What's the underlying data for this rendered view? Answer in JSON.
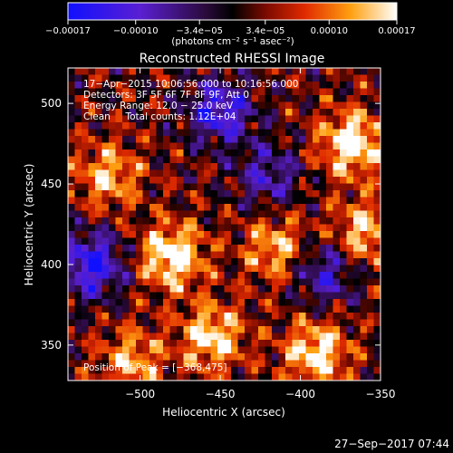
{
  "chart_data": {
    "type": "heatmap",
    "title": "Reconstructed RHESSI Image",
    "xlabel": "Heliocentric X (arcsec)",
    "ylabel": "Heliocentric Y (arcsec)",
    "xlim": [
      -545,
      -350
    ],
    "ylim": [
      328,
      522
    ],
    "x_ticks": [
      -500,
      -450,
      -400,
      -350
    ],
    "x_tick_labels": [
      "−500",
      "−450",
      "−400",
      "−350"
    ],
    "y_ticks": [
      350,
      400,
      450,
      500
    ],
    "y_tick_labels": [
      "350",
      "400",
      "450",
      "500"
    ],
    "colorbar": {
      "colormap": "blue-purple-black-red-yellow-white",
      "range": [
        -0.00017,
        0.00017
      ],
      "tick_values": [
        -0.00017,
        -0.0001,
        -3.4e-05,
        3.4e-05,
        0.0001,
        0.00017
      ],
      "tick_labels": [
        "−0.00017",
        "−0.00010",
        "−3.4e−05",
        "3.4e−05",
        "0.00010",
        "0.00017"
      ],
      "units_label": "(photons cm⁻² s⁻¹ asec⁻²)"
    },
    "annotations": [
      "17−Apr−2015 10:06:56.000 to 10:16:56.000",
      "Detectors: 3F 5F 6F 7F 8F 9F, Att 0",
      "Energy Range: 12.0 − 25.0 keV",
      "Clean     Total counts: 1.12E+04"
    ],
    "peak_label": "Position of Peak = [−368,475]",
    "peak_position": [
      -368,
      475
    ],
    "bright_sources": [
      {
        "x": -480,
        "y": 405,
        "level": 1.0
      },
      {
        "x": -368,
        "y": 475,
        "level": 1.0
      },
      {
        "x": -455,
        "y": 355,
        "level": 0.85
      },
      {
        "x": -390,
        "y": 345,
        "level": 0.9
      },
      {
        "x": -520,
        "y": 455,
        "level": 0.7
      },
      {
        "x": -415,
        "y": 410,
        "level": 0.7
      },
      {
        "x": -360,
        "y": 420,
        "level": 0.75
      },
      {
        "x": -505,
        "y": 340,
        "level": 0.65
      }
    ],
    "dim_regions": [
      {
        "x": -450,
        "y": 495,
        "level": -0.9
      },
      {
        "x": -530,
        "y": 400,
        "level": -1.0
      },
      {
        "x": -420,
        "y": 455,
        "level": -0.6
      },
      {
        "x": -385,
        "y": 395,
        "level": -0.7
      }
    ],
    "grid": false
  },
  "footer": {
    "timestamp": "27−Sep−2017 07:44"
  }
}
